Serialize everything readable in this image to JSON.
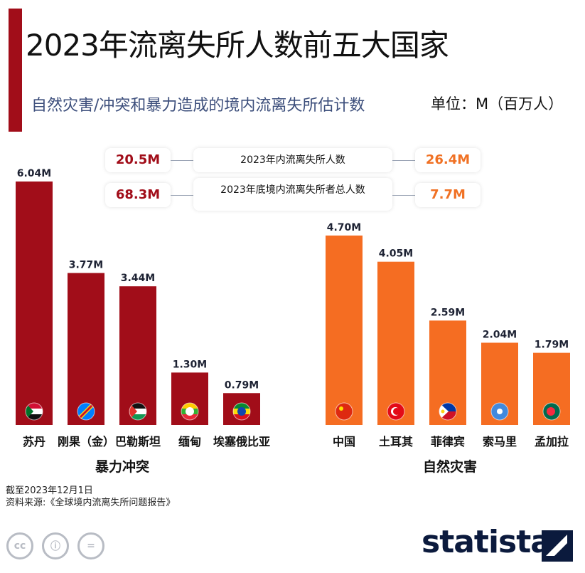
{
  "header": {
    "title": "2023年流离失所人数前五大国家",
    "subtitle": "自然灾害/冲突和暴力造成的境内流离失所估计数",
    "unit": "单位：M（百万人）"
  },
  "stats": {
    "row1": {
      "left_value": "20.5M",
      "label": "2023年内流离失所人数",
      "right_value": "26.4M"
    },
    "row2": {
      "left_value": "68.3M",
      "label": "2023年底境内流离失所者总人数",
      "right_value": "7.7M"
    }
  },
  "colors": {
    "conflict": "#a10d19",
    "disaster": "#f56d22",
    "accent": "#a10d19"
  },
  "chart_data": {
    "type": "bar",
    "groups": [
      {
        "name": "暴力冲突",
        "color": "#a10d19",
        "categories": [
          "苏丹",
          "刚果（金）",
          "巴勒斯坦",
          "缅甸",
          "埃塞俄比亚"
        ],
        "values": [
          6.04,
          3.77,
          3.44,
          1.3,
          0.79
        ],
        "labels": [
          "6.04M",
          "3.77M",
          "3.44M",
          "1.30M",
          "0.79M"
        ],
        "flags": [
          "sudan-flag-icon",
          "dr-congo-flag-icon",
          "palestine-flag-icon",
          "myanmar-flag-icon",
          "ethiopia-flag-icon"
        ]
      },
      {
        "name": "自然灾害",
        "color": "#f56d22",
        "categories": [
          "中国",
          "土耳其",
          "菲律宾",
          "索马里",
          "孟加拉"
        ],
        "values": [
          4.7,
          4.05,
          2.59,
          2.04,
          1.79
        ],
        "labels": [
          "4.70M",
          "4.05M",
          "2.59M",
          "2.04M",
          "1.79M"
        ],
        "flags": [
          "china-flag-icon",
          "turkey-flag-icon",
          "philippines-flag-icon",
          "somalia-flag-icon",
          "bangladesh-flag-icon"
        ]
      }
    ],
    "ylim": [
      0,
      6.04
    ],
    "grid": false,
    "legend": "none"
  },
  "footer": {
    "date_note": "截至2023年12月1日",
    "source": "资料来源:《全球境内流离失所问题报告》",
    "brand": "statista",
    "license_icons": [
      "cc",
      "ⓘ",
      "="
    ]
  }
}
